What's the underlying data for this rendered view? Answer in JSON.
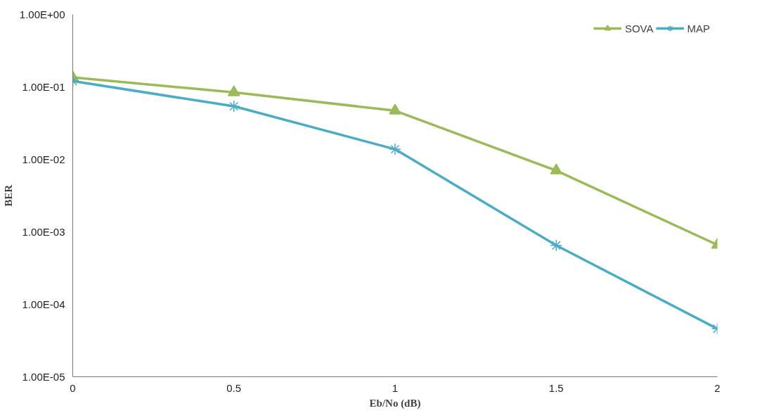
{
  "chart_data": {
    "type": "line",
    "xlabel": "Eb/No (dB)",
    "ylabel": "BER",
    "log": "y",
    "x": [
      0,
      0.5,
      1,
      1.5,
      2
    ],
    "series": [
      {
        "name": "SOVA",
        "color": "#9bbb59",
        "marker": "triangle",
        "values": [
          0.135,
          0.084,
          0.047,
          0.007,
          0.00066
        ]
      },
      {
        "name": "MAP",
        "color": "#4bacc6",
        "marker": "cross",
        "values": [
          0.12,
          0.054,
          0.0138,
          0.00065,
          4.6e-05
        ]
      }
    ],
    "xlim": [
      0,
      2
    ],
    "xticks": [
      0,
      0.5,
      1,
      1.5,
      2
    ],
    "ylim": [
      1e-05,
      1
    ],
    "yticks": [
      {
        "value": 1,
        "label": "1.00E+00"
      },
      {
        "value": 0.1,
        "label": "1.00E-01"
      },
      {
        "value": 0.01,
        "label": "1.00E-02"
      },
      {
        "value": 0.001,
        "label": "1.00E-03"
      },
      {
        "value": 0.0001,
        "label": "1.00E-04"
      },
      {
        "value": 1e-05,
        "label": "1.00E-05"
      }
    ],
    "grid": false,
    "legend": "top right"
  }
}
